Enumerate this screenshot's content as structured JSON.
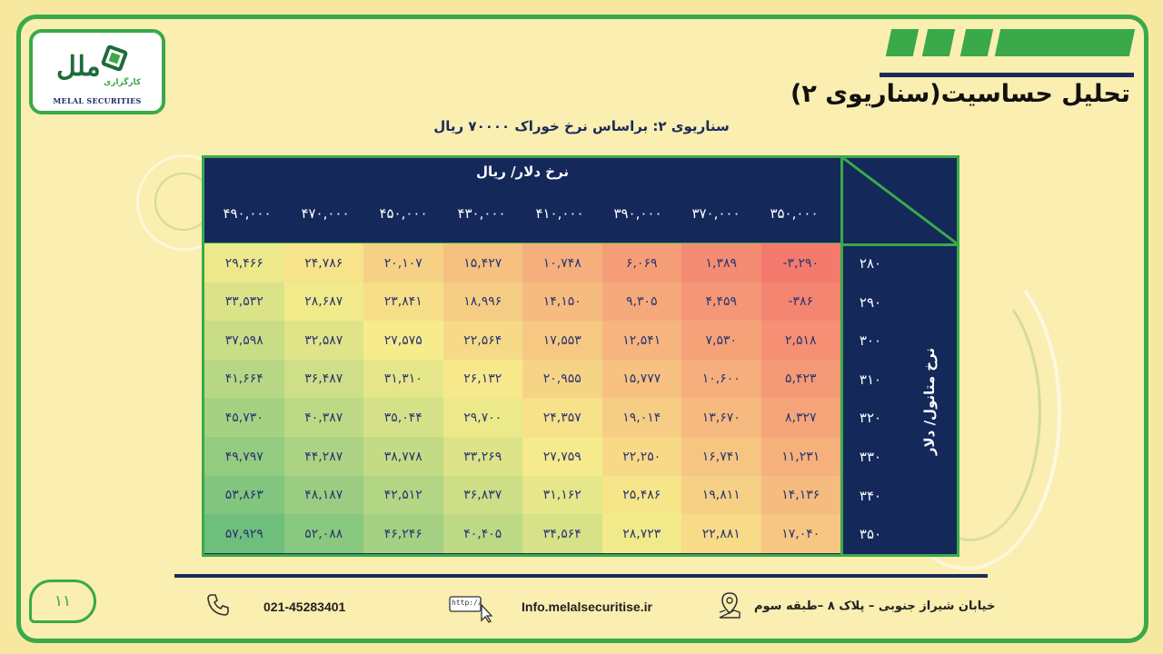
{
  "logo": {
    "name_fa": "ملل",
    "name_en": "MELAL SECURITIES",
    "tag_fa": "کارگزاری"
  },
  "header": {
    "title": "تحلیل حساسیت(سناریوی ۲)",
    "subtitle": "سناریوی ۲: براساس نرخ خوراک ۷۰۰۰۰ ریال"
  },
  "table": {
    "col_title": "نرخ دلار/ ریال",
    "row_title": "نرخ متانول/ دلار",
    "col_headers": [
      "۳۵۰,۰۰۰",
      "۳۷۰,۰۰۰",
      "۳۹۰,۰۰۰",
      "۴۱۰,۰۰۰",
      "۴۳۰,۰۰۰",
      "۴۵۰,۰۰۰",
      "۴۷۰,۰۰۰",
      "۴۹۰,۰۰۰"
    ],
    "row_headers": [
      "۲۸۰",
      "۲۹۰",
      "۳۰۰",
      "۳۱۰",
      "۳۲۰",
      "۳۳۰",
      "۳۴۰",
      "۳۵۰"
    ],
    "cells": [
      [
        "-۳,۲۹۰",
        "۱,۳۸۹",
        "۶,۰۶۹",
        "۱۰,۷۴۸",
        "۱۵,۴۲۷",
        "۲۰,۱۰۷",
        "۲۴,۷۸۶",
        "۲۹,۴۶۶"
      ],
      [
        "-۳۸۶",
        "۴,۴۵۹",
        "۹,۳۰۵",
        "۱۴,۱۵۰",
        "۱۸,۹۹۶",
        "۲۳,۸۴۱",
        "۲۸,۶۸۷",
        "۳۳,۵۳۲"
      ],
      [
        "۲,۵۱۸",
        "۷,۵۳۰",
        "۱۲,۵۴۱",
        "۱۷,۵۵۳",
        "۲۲,۵۶۴",
        "۲۷,۵۷۵",
        "۳۲,۵۸۷",
        "۳۷,۵۹۸"
      ],
      [
        "۵,۴۲۳",
        "۱۰,۶۰۰",
        "۱۵,۷۷۷",
        "۲۰,۹۵۵",
        "۲۶,۱۳۲",
        "۳۱,۳۱۰",
        "۳۶,۴۸۷",
        "۴۱,۶۶۴"
      ],
      [
        "۸,۳۲۷",
        "۱۳,۶۷۰",
        "۱۹,۰۱۴",
        "۲۴,۳۵۷",
        "۲۹,۷۰۰",
        "۳۵,۰۴۴",
        "۴۰,۳۸۷",
        "۴۵,۷۳۰"
      ],
      [
        "۱۱,۲۳۱",
        "۱۶,۷۴۱",
        "۲۲,۲۵۰",
        "۲۷,۷۵۹",
        "۳۳,۲۶۹",
        "۳۸,۷۷۸",
        "۴۴,۲۸۷",
        "۴۹,۷۹۷"
      ],
      [
        "۱۴,۱۳۶",
        "۱۹,۸۱۱",
        "۲۵,۴۸۶",
        "۳۱,۱۶۲",
        "۳۶,۸۳۷",
        "۴۲,۵۱۲",
        "۴۸,۱۸۷",
        "۵۳,۸۶۳"
      ],
      [
        "۱۷,۰۴۰",
        "۲۲,۸۸۱",
        "۲۸,۷۲۳",
        "۳۴,۵۶۴",
        "۴۰,۴۰۵",
        "۴۶,۲۴۶",
        "۵۲,۰۸۸",
        "۵۷,۹۲۹"
      ]
    ],
    "numeric_values": [
      [
        -3290,
        1389,
        6069,
        10748,
        15427,
        20107,
        24786,
        29466
      ],
      [
        -386,
        4459,
        9305,
        14150,
        18996,
        23841,
        28687,
        33532
      ],
      [
        2518,
        7530,
        12541,
        17553,
        22564,
        27575,
        32587,
        37598
      ],
      [
        5423,
        10600,
        15777,
        20955,
        26132,
        31310,
        36487,
        41664
      ],
      [
        8327,
        13670,
        19014,
        24357,
        29700,
        35044,
        40387,
        45730
      ],
      [
        11231,
        16741,
        22250,
        27759,
        33269,
        38778,
        44287,
        49797
      ],
      [
        14136,
        19811,
        25486,
        31162,
        36837,
        42512,
        48187,
        53863
      ],
      [
        17040,
        22881,
        28723,
        34564,
        40405,
        46246,
        52088,
        57929
      ]
    ],
    "colors": {
      "low": "#f47a6e",
      "mid": "#f7ec8c",
      "high": "#6fbf7c"
    }
  },
  "footer": {
    "page": "۱۱",
    "phone": "021-45283401",
    "web_icon_text": "http://",
    "email": "Info.melalsecuritise.ir",
    "address": "خیابان شیراز جنوبی – پلاک ۸ –طبقه سوم"
  },
  "accent": "#3aa94a",
  "navy": "#14285a"
}
